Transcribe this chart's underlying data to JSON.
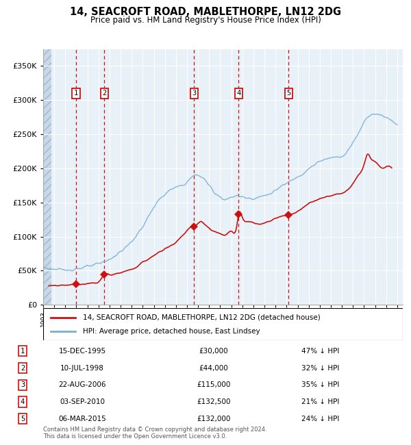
{
  "title": "14, SEACROFT ROAD, MABLETHORPE, LN12 2DG",
  "subtitle": "Price paid vs. HM Land Registry's House Price Index (HPI)",
  "footer": "Contains HM Land Registry data © Crown copyright and database right 2024.\nThis data is licensed under the Open Government Licence v3.0.",
  "legend_line1": "14, SEACROFT ROAD, MABLETHORPE, LN12 2DG (detached house)",
  "legend_line2": "HPI: Average price, detached house, East Lindsey",
  "sales": [
    {
      "num": 1,
      "date": "15-DEC-1995",
      "price": 30000,
      "pct": "47% ↓ HPI",
      "x": 1995.96
    },
    {
      "num": 2,
      "date": "10-JUL-1998",
      "price": 44000,
      "pct": "32% ↓ HPI",
      "x": 1998.53
    },
    {
      "num": 3,
      "date": "22-AUG-2006",
      "price": 115000,
      "pct": "35% ↓ HPI",
      "x": 2006.64
    },
    {
      "num": 4,
      "date": "03-SEP-2010",
      "price": 132500,
      "pct": "21% ↓ HPI",
      "x": 2010.67
    },
    {
      "num": 5,
      "date": "06-MAR-2015",
      "price": 132000,
      "pct": "24% ↓ HPI",
      "x": 2015.18
    }
  ],
  "hpi_color": "#7bafd4",
  "sale_color": "#cc1111",
  "ylim": [
    0,
    375000
  ],
  "yticks": [
    0,
    50000,
    100000,
    150000,
    200000,
    250000,
    300000,
    350000
  ],
  "ytick_labels": [
    "£0",
    "£50K",
    "£100K",
    "£150K",
    "£200K",
    "£250K",
    "£300K",
    "£350K"
  ],
  "xlim_start": 1993.0,
  "xlim_end": 2025.5,
  "hpi_anchor_points": [
    [
      1993.0,
      55000
    ],
    [
      1994.0,
      52000
    ],
    [
      1995.0,
      51000
    ],
    [
      1996.0,
      53000
    ],
    [
      1997.0,
      56000
    ],
    [
      1998.0,
      60000
    ],
    [
      1999.0,
      67000
    ],
    [
      2000.0,
      78000
    ],
    [
      2001.0,
      93000
    ],
    [
      2002.0,
      115000
    ],
    [
      2003.0,
      143000
    ],
    [
      2004.0,
      162000
    ],
    [
      2005.0,
      172000
    ],
    [
      2006.0,
      180000
    ],
    [
      2006.5,
      188000
    ],
    [
      2007.0,
      190000
    ],
    [
      2007.5,
      185000
    ],
    [
      2008.0,
      175000
    ],
    [
      2008.5,
      165000
    ],
    [
      2009.0,
      158000
    ],
    [
      2009.5,
      155000
    ],
    [
      2010.0,
      157000
    ],
    [
      2010.5,
      160000
    ],
    [
      2011.0,
      158000
    ],
    [
      2011.5,
      157000
    ],
    [
      2012.0,
      156000
    ],
    [
      2012.5,
      158000
    ],
    [
      2013.0,
      160000
    ],
    [
      2013.5,
      163000
    ],
    [
      2014.0,
      168000
    ],
    [
      2014.5,
      173000
    ],
    [
      2015.0,
      178000
    ],
    [
      2015.5,
      183000
    ],
    [
      2016.0,
      188000
    ],
    [
      2016.5,
      193000
    ],
    [
      2017.0,
      200000
    ],
    [
      2017.5,
      205000
    ],
    [
      2018.0,
      210000
    ],
    [
      2018.5,
      213000
    ],
    [
      2019.0,
      215000
    ],
    [
      2019.5,
      217000
    ],
    [
      2020.0,
      218000
    ],
    [
      2020.5,
      225000
    ],
    [
      2021.0,
      238000
    ],
    [
      2021.5,
      252000
    ],
    [
      2022.0,
      268000
    ],
    [
      2022.5,
      278000
    ],
    [
      2023.0,
      280000
    ],
    [
      2023.5,
      278000
    ],
    [
      2024.0,
      275000
    ],
    [
      2024.5,
      270000
    ],
    [
      2025.0,
      265000
    ]
  ],
  "sale_anchor_points": [
    [
      1993.5,
      28000
    ],
    [
      1995.0,
      29000
    ],
    [
      1995.96,
      30000
    ],
    [
      1996.5,
      30500
    ],
    [
      1997.0,
      31000
    ],
    [
      1997.5,
      32000
    ],
    [
      1998.0,
      33000
    ],
    [
      1998.53,
      44000
    ],
    [
      1999.0,
      44500
    ],
    [
      2000.0,
      47000
    ],
    [
      2001.0,
      52000
    ],
    [
      2002.0,
      62000
    ],
    [
      2003.0,
      72000
    ],
    [
      2004.0,
      82000
    ],
    [
      2005.0,
      92000
    ],
    [
      2005.5,
      100000
    ],
    [
      2006.0,
      108000
    ],
    [
      2006.5,
      115000
    ],
    [
      2006.64,
      115000
    ],
    [
      2007.0,
      120000
    ],
    [
      2007.3,
      122000
    ],
    [
      2007.6,
      118000
    ],
    [
      2008.0,
      112000
    ],
    [
      2008.5,
      107000
    ],
    [
      2009.0,
      104000
    ],
    [
      2009.5,
      102000
    ],
    [
      2010.0,
      108000
    ],
    [
      2010.5,
      115000
    ],
    [
      2010.67,
      132500
    ],
    [
      2011.0,
      128000
    ],
    [
      2011.5,
      122000
    ],
    [
      2012.0,
      120000
    ],
    [
      2012.5,
      118000
    ],
    [
      2013.0,
      120000
    ],
    [
      2013.5,
      123000
    ],
    [
      2014.0,
      127000
    ],
    [
      2014.5,
      130000
    ],
    [
      2015.0,
      131000
    ],
    [
      2015.18,
      132000
    ],
    [
      2015.5,
      133000
    ],
    [
      2016.0,
      137000
    ],
    [
      2016.5,
      143000
    ],
    [
      2017.0,
      148000
    ],
    [
      2017.5,
      152000
    ],
    [
      2018.0,
      155000
    ],
    [
      2018.5,
      158000
    ],
    [
      2019.0,
      160000
    ],
    [
      2019.5,
      162000
    ],
    [
      2020.0,
      163000
    ],
    [
      2020.5,
      168000
    ],
    [
      2021.0,
      178000
    ],
    [
      2021.5,
      190000
    ],
    [
      2022.0,
      205000
    ],
    [
      2022.3,
      220000
    ],
    [
      2022.6,
      215000
    ],
    [
      2023.0,
      210000
    ],
    [
      2023.3,
      205000
    ],
    [
      2023.6,
      200000
    ],
    [
      2024.0,
      202000
    ],
    [
      2024.5,
      200000
    ]
  ]
}
